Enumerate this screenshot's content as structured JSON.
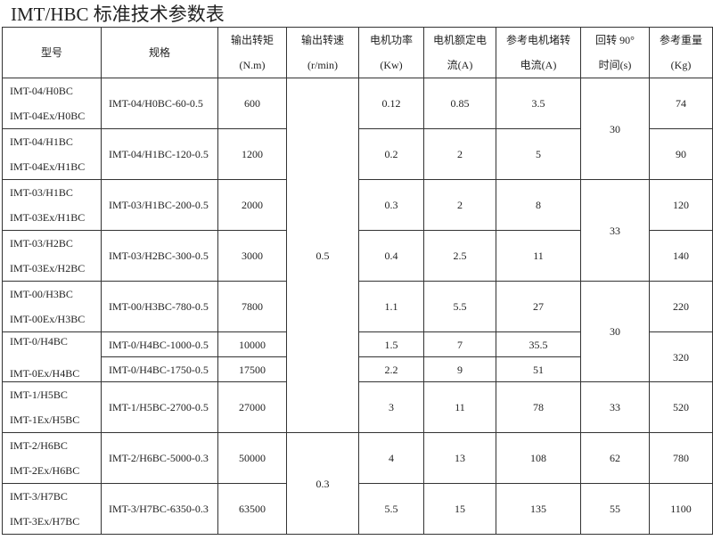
{
  "title": "IMT/HBC 标准技术参数表",
  "headers": [
    [
      "型号"
    ],
    [
      "规格"
    ],
    [
      "输出转矩",
      "(N.m)"
    ],
    [
      "输出转速",
      "(r/min)"
    ],
    [
      "电机功率",
      "(Kw)"
    ],
    [
      "电机额定电",
      "流(A)"
    ],
    [
      "参考电机堵转",
      "电流(A)"
    ],
    [
      "回转 90°",
      "时间(s)"
    ],
    [
      "参考重量",
      "(Kg)"
    ]
  ],
  "rows": [
    {
      "cells": [
        {
          "m": [
            "IMT-04/H0BC",
            "IMT-04Ex/H0BC"
          ],
          "c": "model"
        },
        {
          "t": "IMT-04/H0BC-60-0.5",
          "c": "left"
        },
        {
          "t": "600"
        },
        {
          "t": "0.5",
          "rs": 8
        },
        {
          "t": "0.12"
        },
        {
          "t": "0.85"
        },
        {
          "t": "3.5"
        },
        {
          "t": "30",
          "rs": 2
        },
        {
          "t": "74"
        }
      ]
    },
    {
      "cells": [
        {
          "m": [
            "IMT-04/H1BC",
            "IMT-04Ex/H1BC"
          ],
          "c": "model"
        },
        {
          "t": "IMT-04/H1BC-120-0.5",
          "c": "left"
        },
        {
          "t": "1200"
        },
        {
          "t": "0.2"
        },
        {
          "t": "2"
        },
        {
          "t": "5"
        },
        {
          "t": "90"
        }
      ]
    },
    {
      "cells": [
        {
          "m": [
            "IMT-03/H1BC",
            "IMT-03Ex/H1BC"
          ],
          "c": "model"
        },
        {
          "t": "IMT-03/H1BC-200-0.5",
          "c": "left"
        },
        {
          "t": "2000"
        },
        {
          "t": "0.3"
        },
        {
          "t": "2"
        },
        {
          "t": "8"
        },
        {
          "t": "33",
          "rs": 2
        },
        {
          "t": "120"
        }
      ]
    },
    {
      "cells": [
        {
          "m": [
            "IMT-03/H2BC",
            "IMT-03Ex/H2BC"
          ],
          "c": "model"
        },
        {
          "t": "IMT-03/H2BC-300-0.5",
          "c": "left"
        },
        {
          "t": "3000"
        },
        {
          "t": "0.4"
        },
        {
          "t": "2.5"
        },
        {
          "t": "11"
        },
        {
          "t": "140"
        }
      ]
    },
    {
      "cells": [
        {
          "m": [
            "IMT-00/H3BC",
            "IMT-00Ex/H3BC"
          ],
          "c": "model"
        },
        {
          "t": "IMT-00/H3BC-780-0.5",
          "c": "left"
        },
        {
          "t": "7800"
        },
        {
          "t": "1.1"
        },
        {
          "t": "5.5"
        },
        {
          "t": "27"
        },
        {
          "t": "30",
          "rs": 3
        },
        {
          "t": "220"
        }
      ]
    },
    {
      "half": true,
      "cells": [
        {
          "m": [
            "IMT-0/H4BC",
            "IMT-0Ex/H4BC"
          ],
          "c": "model",
          "rs": 2
        },
        {
          "t": "IMT-0/H4BC-1000-0.5",
          "c": "left"
        },
        {
          "t": "10000"
        },
        {
          "t": "1.5"
        },
        {
          "t": "7"
        },
        {
          "t": "35.5"
        },
        {
          "t": "320",
          "rs": 2
        }
      ]
    },
    {
      "half": true,
      "cells": [
        {
          "t": "IMT-0/H4BC-1750-0.5",
          "c": "left"
        },
        {
          "t": "17500"
        },
        {
          "t": "2.2"
        },
        {
          "t": "9"
        },
        {
          "t": "51"
        }
      ]
    },
    {
      "cells": [
        {
          "m": [
            "IMT-1/H5BC",
            "IMT-1Ex/H5BC"
          ],
          "c": "model"
        },
        {
          "t": "IMT-1/H5BC-2700-0.5",
          "c": "left"
        },
        {
          "t": "27000"
        },
        {
          "t": "3"
        },
        {
          "t": "11"
        },
        {
          "t": "78"
        },
        {
          "t": "33"
        },
        {
          "t": "520"
        }
      ]
    },
    {
      "cells": [
        {
          "m": [
            "IMT-2/H6BC",
            "IMT-2Ex/H6BC"
          ],
          "c": "model"
        },
        {
          "t": "IMT-2/H6BC-5000-0.3",
          "c": "left"
        },
        {
          "t": "50000"
        },
        {
          "t": "0.3",
          "rs": 2
        },
        {
          "t": "4"
        },
        {
          "t": "13"
        },
        {
          "t": "108"
        },
        {
          "t": "62"
        },
        {
          "t": "780"
        }
      ]
    },
    {
      "cells": [
        {
          "m": [
            "IMT-3/H7BC",
            "IMT-3Ex/H7BC"
          ],
          "c": "model"
        },
        {
          "t": "IMT-3/H7BC-6350-0.3",
          "c": "left"
        },
        {
          "t": "63500"
        },
        {
          "t": "5.5"
        },
        {
          "t": "15"
        },
        {
          "t": "135"
        },
        {
          "t": "55"
        },
        {
          "t": "1100"
        }
      ]
    }
  ]
}
